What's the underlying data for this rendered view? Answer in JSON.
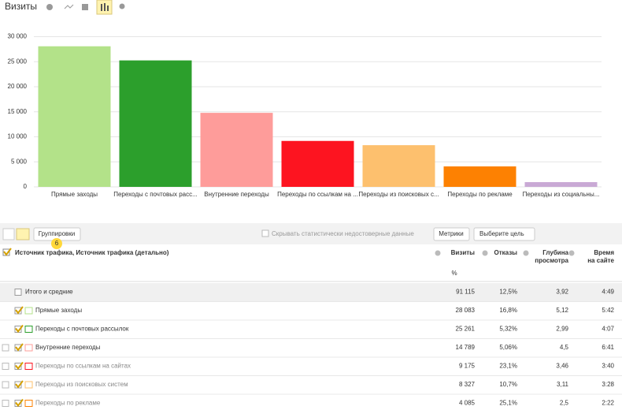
{
  "header": {
    "title": "Визиты"
  },
  "chart_data": {
    "type": "bar",
    "categories": [
      "Прямые заходы",
      "Переходы с почтовых расс...",
      "Внутренние переходы",
      "Переходы по ссылкам на ...",
      "Переходы из поисковых с...",
      "Переходы по рекламе",
      "Переходы из социальны..."
    ],
    "values": [
      28083,
      25261,
      14789,
      9175,
      8327,
      4085,
      950
    ],
    "colors": [
      "#b3e289",
      "#2c9f2c",
      "#fe9c9a",
      "#fd1420",
      "#fdc06e",
      "#fd8102",
      "#c9a9d5"
    ],
    "ylim": [
      0,
      31500
    ],
    "yticks": [
      0,
      {
        "value": 5000,
        "label": "5 000"
      },
      {
        "value": 10000,
        "label": "10 000"
      },
      {
        "value": 15000,
        "label": "15 000"
      },
      {
        "value": 20000,
        "label": "20 000"
      },
      {
        "value": 25000,
        "label": "25 000"
      },
      {
        "value": 30000,
        "label": "30 000"
      }
    ],
    "grid": true
  },
  "toolbar": {
    "groupings": "Группировки",
    "badge": "6",
    "hide_unreliable": "Скрывать статистически недостоверные данные",
    "metrics": "Метрики",
    "goal": "Выберите цель"
  },
  "table": {
    "dimension": "Источник трафика, Источник трафика (детально)",
    "columns": [
      [
        "Визиты"
      ],
      [
        "Отказы"
      ],
      [
        "Глубина",
        "просмотра"
      ],
      [
        "Время",
        "на сайте"
      ]
    ],
    "filter_percent": "%",
    "rows": [
      [
        "Итого и средние",
        "91 115",
        "12,5%",
        "3,92",
        "4:49"
      ],
      [
        "Прямые заходы",
        "28 083",
        "16,8%",
        "5,12",
        "5:42"
      ],
      [
        "Переходы с почтовых рассылок",
        "25 261",
        "5,32%",
        "2,99",
        "4:07"
      ],
      [
        "Внутренние переходы",
        "14 789",
        "5,06%",
        "4,5",
        "6:41"
      ],
      [
        "Переходы по ссылкам на сайтах",
        "9 175",
        "23,1%",
        "3,46",
        "3:40"
      ],
      [
        "Переходы из поисковых систем",
        "8 327",
        "10,7%",
        "3,11",
        "3:28"
      ],
      [
        "Переходы по рекламе",
        "4 085",
        "25,1%",
        "2,5",
        "2:22"
      ]
    ]
  }
}
